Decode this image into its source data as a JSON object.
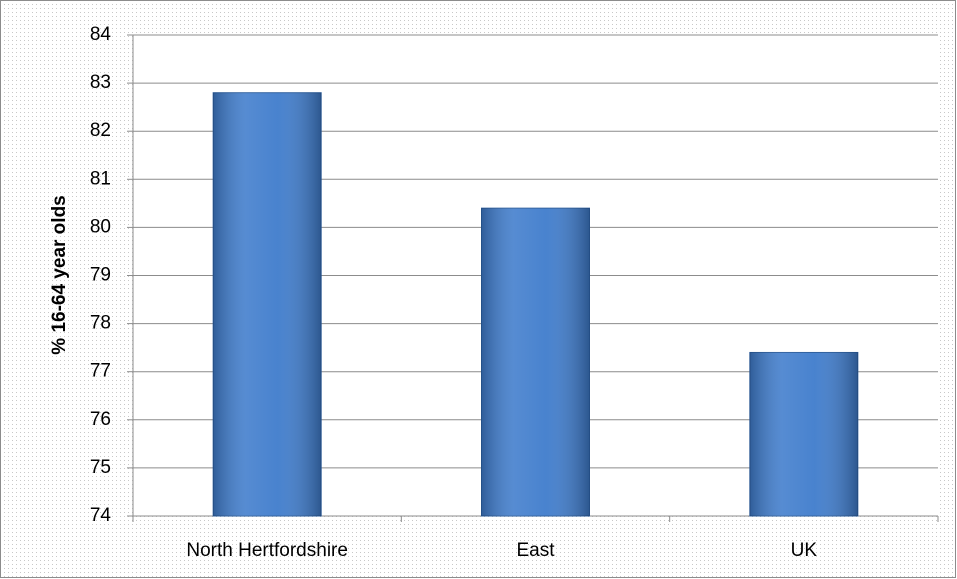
{
  "chart_data": {
    "type": "bar",
    "y_label": "% 16-64 year olds",
    "categories": [
      "North Hertfordshire",
      "East",
      "UK"
    ],
    "values": [
      82.8,
      80.4,
      77.4
    ],
    "color": "#3f7ccc",
    "ylim": [
      74,
      84
    ],
    "yticks": [
      74,
      75,
      76,
      77,
      78,
      79,
      80,
      81,
      82,
      83,
      84
    ],
    "grid": true
  }
}
